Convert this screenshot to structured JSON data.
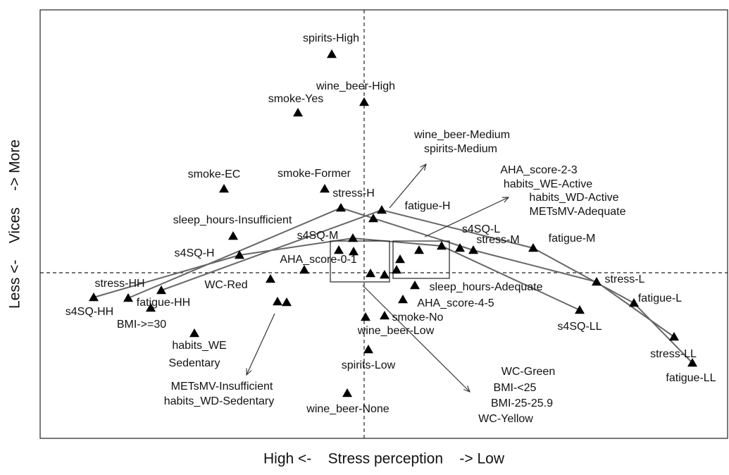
{
  "chart_data": {
    "type": "scatter",
    "x_label": "High <-    Stress perception    -> Low",
    "y_label": "Less <-    Vices    -> More",
    "xlim": [
      -460,
      516
    ],
    "ylim": [
      -235,
      373
    ],
    "reference_lines": {
      "x": 0,
      "y": 0
    },
    "color": "#000000",
    "x": [
      -46,
      0,
      -94,
      -199,
      -56,
      -33,
      25,
      13,
      -186,
      -16,
      -177,
      -36,
      -15,
      -85,
      9,
      29,
      46,
      51,
      78,
      110,
      136,
      155,
      240,
      330,
      383,
      306,
      440,
      466,
      -335,
      -384,
      -288,
      -303,
      -133,
      -123,
      -110,
      -241,
      72,
      55,
      29,
      2,
      6,
      -24
    ],
    "y": [
      310,
      242,
      227,
      119,
      119,
      92,
      89,
      77,
      52,
      49,
      25,
      32,
      30,
      4,
      -1,
      -3,
      4,
      19,
      32,
      38,
      35,
      32,
      35,
      -13,
      -43,
      -53,
      -91,
      -128,
      -36,
      -35,
      -25,
      -50,
      -9,
      -41,
      -42,
      -86,
      -18,
      -38,
      -61,
      -63,
      -109,
      -171
    ],
    "lines": {
      "color": "#666666",
      "series": [
        {
          "x": [
            -335,
            -33,
            155,
            330,
            440
          ],
          "y": [
            -36,
            92,
            32,
            -13,
            -91
          ]
        },
        {
          "x": [
            -288,
            25,
            240,
            383,
            466
          ],
          "y": [
            -25,
            89,
            35,
            -43,
            -128
          ]
        },
        {
          "x": [
            -384,
            -177,
            -16,
            110,
            306
          ],
          "y": [
            -35,
            25,
            49,
            38,
            -53
          ]
        }
      ]
    },
    "arrows": [
      {
        "x": [
          36,
          88
        ],
        "y": [
          92,
          154
        ]
      },
      {
        "x": [
          86,
          205
        ],
        "y": [
          51,
          107
        ]
      },
      {
        "x": [
          -2,
          150
        ],
        "y": [
          -18,
          -169
        ]
      },
      {
        "x": [
          -127,
          -167
        ],
        "y": [
          -58,
          -145
        ]
      }
    ],
    "boxes": [
      {
        "x": [
          -48,
          36
        ],
        "y": [
          45,
          -13
        ]
      },
      {
        "x": [
          41,
          121
        ],
        "y": [
          45,
          -8
        ]
      }
    ],
    "labels": [
      {
        "text": "spirits-High",
        "x": -47,
        "y": 332
      },
      {
        "text": "wine_beer-High",
        "x": -12,
        "y": 264
      },
      {
        "text": "smoke-Yes",
        "x": -97,
        "y": 246
      },
      {
        "text": "wine_beer-Medium",
        "x": 139,
        "y": 195
      },
      {
        "text": "spirits-Medium",
        "x": 137,
        "y": 175
      },
      {
        "text": "AHA_score-2-3",
        "x": 248,
        "y": 145
      },
      {
        "text": "habits_WE-Active",
        "x": 261,
        "y": 125
      },
      {
        "text": "habits_WD-Active",
        "x": 298,
        "y": 106
      },
      {
        "text": "METsMV-Adequate",
        "x": 303,
        "y": 86
      },
      {
        "text": "smoke-EC",
        "x": -213,
        "y": 139
      },
      {
        "text": "smoke-Former",
        "x": -71,
        "y": 140
      },
      {
        "text": "stress-H",
        "x": -15,
        "y": 112
      },
      {
        "text": "fatigue-H",
        "x": 90,
        "y": 94
      },
      {
        "text": "sleep_hours-Insufficient",
        "x": -187,
        "y": 74
      },
      {
        "text": "s4SQ-L",
        "x": 166,
        "y": 61
      },
      {
        "text": "s4SQ-M",
        "x": -66,
        "y": 52
      },
      {
        "text": "stress-M",
        "x": 190,
        "y": 46
      },
      {
        "text": "fatigue-M",
        "x": 295,
        "y": 48
      },
      {
        "text": "s4SQ-H",
        "x": -241,
        "y": 27
      },
      {
        "text": "AHA_score-0-1",
        "x": -65,
        "y": 18
      },
      {
        "text": "stress-L",
        "x": 370,
        "y": -10
      },
      {
        "text": "stress-HH",
        "x": -347,
        "y": -16
      },
      {
        "text": "WC-Red",
        "x": -196,
        "y": -18
      },
      {
        "text": "sleep_hours-Adequate",
        "x": 173,
        "y": -21
      },
      {
        "text": "fatigue-L",
        "x": 420,
        "y": -37
      },
      {
        "text": "fatigue-HH",
        "x": -285,
        "y": -43
      },
      {
        "text": "AHA_score-4-5",
        "x": 130,
        "y": -44
      },
      {
        "text": "s4SQ-HH",
        "x": -390,
        "y": -56
      },
      {
        "text": "smoke-No",
        "x": 76,
        "y": -64
      },
      {
        "text": "BMI->=30",
        "x": -316,
        "y": -74
      },
      {
        "text": "s4SQ-LL",
        "x": 306,
        "y": -77
      },
      {
        "text": "wine_beer-Low",
        "x": 45,
        "y": -83
      },
      {
        "text": "habits_WE",
        "x": -234,
        "y": -104
      },
      {
        "text": "Sedentary",
        "x": -241,
        "y": -129
      },
      {
        "text": "stress-LL",
        "x": 439,
        "y": -116
      },
      {
        "text": "spirits-Low",
        "x": 6,
        "y": -132
      },
      {
        "text": "WC-Green",
        "x": 233,
        "y": -141
      },
      {
        "text": "fatigue-LL",
        "x": 464,
        "y": -150
      },
      {
        "text": "METsMV-Insufficient",
        "x": -202,
        "y": -162
      },
      {
        "text": "BMI-<25",
        "x": 214,
        "y": -164
      },
      {
        "text": "habits_WD-Sedentary",
        "x": -206,
        "y": -183
      },
      {
        "text": "BMI-25-25.9",
        "x": 224,
        "y": -186
      },
      {
        "text": "wine_beer-None",
        "x": -23,
        "y": -194
      },
      {
        "text": "WC-Yellow",
        "x": 201,
        "y": -208
      }
    ]
  }
}
